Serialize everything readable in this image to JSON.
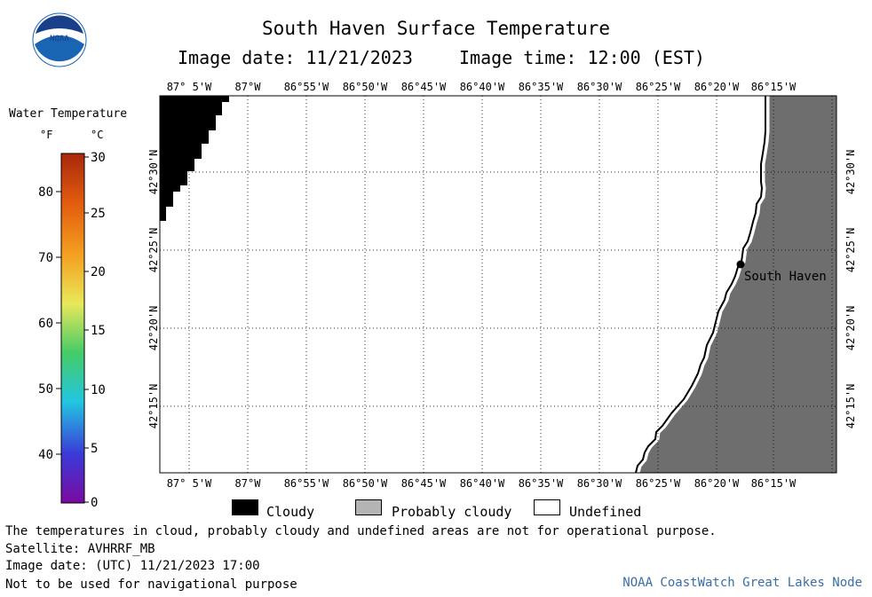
{
  "header": {
    "title": "South Haven Surface Temperature",
    "image_date_label": "Image date: 11/21/2023",
    "image_time_label": "Image time: 12:00 (EST)",
    "logo_text": "NOAA"
  },
  "colorbar": {
    "title": "Water Temperature",
    "unit_f": "°F",
    "unit_c": "°C",
    "f_ticks": [
      "80",
      "70",
      "60",
      "50",
      "40"
    ],
    "c_ticks": [
      "30",
      "25",
      "20",
      "15",
      "10",
      "5",
      "0"
    ],
    "colors": [
      "#7b0aa0",
      "#3a3ad8",
      "#22c6e0",
      "#45cc66",
      "#e8e85a",
      "#f4a020",
      "#e25a0e",
      "#a8280c"
    ]
  },
  "map": {
    "lon_labels": [
      "87° 5'W",
      "87°W",
      "86°55'W",
      "86°50'W",
      "86°45'W",
      "86°40'W",
      "86°35'W",
      "86°30'W",
      "86°25'W",
      "86°20'W",
      "86°15'W"
    ],
    "lat_labels": [
      "42°30'N",
      "42°25'N",
      "42°20'N",
      "42°15'N"
    ],
    "place_label": "South Haven",
    "land_color": "#6e6e6e",
    "cloud_color": "#000000"
  },
  "legend": {
    "cloudy": "Cloudy",
    "probably_cloudy": "Probably cloudy",
    "undefined": "Undefined",
    "cloudy_color": "#000000",
    "probably_cloudy_color": "#b4b4b4",
    "undefined_color": "#ffffff"
  },
  "footer": {
    "line1": "The temperatures in cloud, probably cloudy and undefined areas are not for operational purpose.",
    "line2": "Satellite: AVHRRF_MB",
    "line3": "Image date: (UTC) 11/21/2023  17:00",
    "line4": "Not to be used for navigational purpose",
    "credit": "NOAA CoastWatch Great Lakes Node"
  }
}
